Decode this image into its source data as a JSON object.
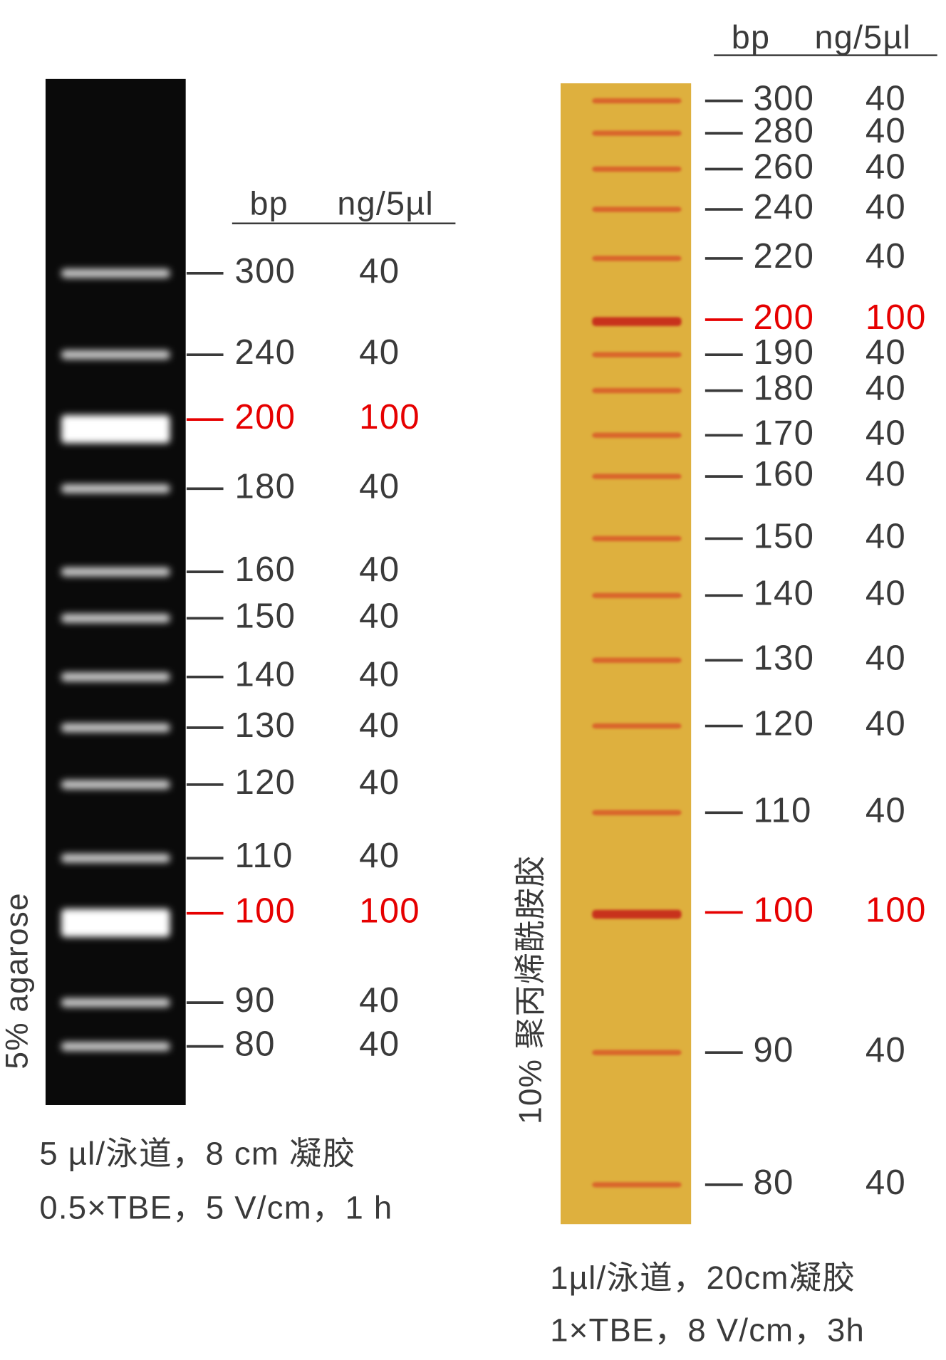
{
  "panels": [
    {
      "header": {
        "bp": "bp",
        "ng": "ng/5µl"
      },
      "gel_label": "5% agarose",
      "caption": [
        "5 µl/泳道，8 cm 凝胶",
        "0.5×TBE，5 V/cm，1 h"
      ],
      "markers": [
        {
          "bp": "300",
          "ng": "40"
        },
        {
          "bp": "240",
          "ng": "40"
        },
        {
          "bp": "200",
          "ng": "100",
          "color": "#e60000"
        },
        {
          "bp": "180",
          "ng": "40"
        },
        {
          "bp": "160",
          "ng": "40"
        },
        {
          "bp": "150",
          "ng": "40"
        },
        {
          "bp": "140",
          "ng": "40"
        },
        {
          "bp": "130",
          "ng": "40"
        },
        {
          "bp": "120",
          "ng": "40"
        },
        {
          "bp": "110",
          "ng": "40"
        },
        {
          "bp": "100",
          "ng": "100",
          "color": "#e60000"
        },
        {
          "bp": "90",
          "ng": "40"
        },
        {
          "bp": "80",
          "ng": "40"
        }
      ]
    },
    {
      "header": {
        "bp": "bp",
        "ng": "ng/5µl"
      },
      "gel_label": "10% 聚丙烯酰胺胶",
      "caption": [
        "1µl/泳道，20cm凝胶",
        "1×TBE，8 V/cm，3h"
      ],
      "markers": [
        {
          "bp": "300",
          "ng": "40"
        },
        {
          "bp": "280",
          "ng": "40"
        },
        {
          "bp": "260",
          "ng": "40"
        },
        {
          "bp": "240",
          "ng": "40"
        },
        {
          "bp": "220",
          "ng": "40"
        },
        {
          "bp": "200",
          "ng": "100",
          "color": "#e60000"
        },
        {
          "bp": "190",
          "ng": "40"
        },
        {
          "bp": "180",
          "ng": "40"
        },
        {
          "bp": "170",
          "ng": "40"
        },
        {
          "bp": "160",
          "ng": "40"
        },
        {
          "bp": "150",
          "ng": "40"
        },
        {
          "bp": "140",
          "ng": "40"
        },
        {
          "bp": "130",
          "ng": "40"
        },
        {
          "bp": "120",
          "ng": "40"
        },
        {
          "bp": "110",
          "ng": "40"
        },
        {
          "bp": "100",
          "ng": "100",
          "color": "#e60000"
        },
        {
          "bp": "90",
          "ng": "40"
        },
        {
          "bp": "80",
          "ng": "40"
        }
      ]
    }
  ]
}
